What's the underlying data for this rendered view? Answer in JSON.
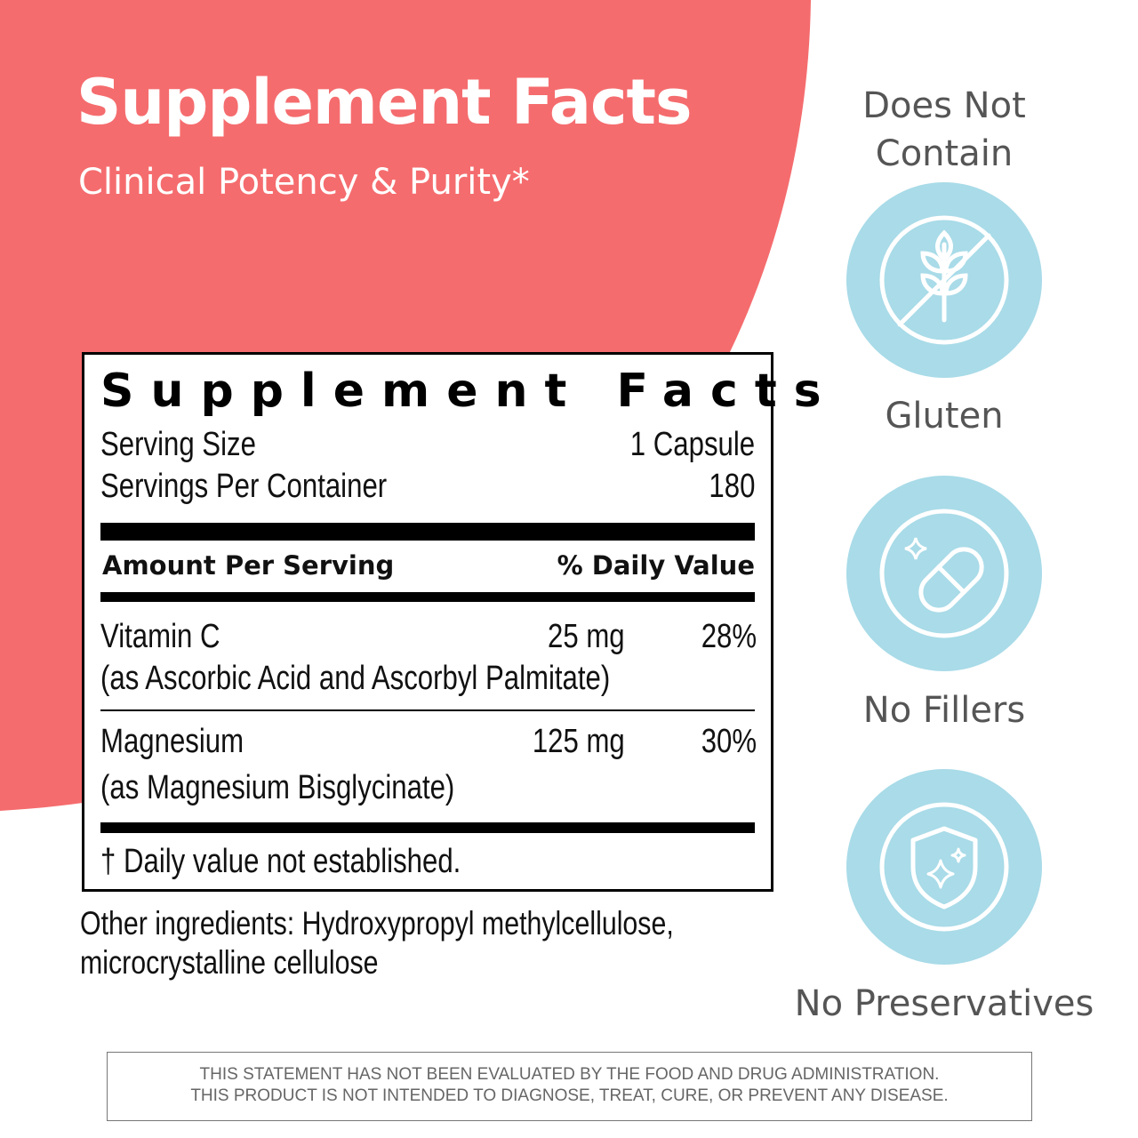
{
  "header": {
    "title": "Supplement Facts",
    "subtitle": "Clinical Potency & Purity*"
  },
  "facts": {
    "title": "Supplement Facts",
    "serving_size": {
      "label": "Serving Size",
      "value": "1 Capsule"
    },
    "servings": {
      "label": "Servings Per Container",
      "value": "180"
    },
    "columns": {
      "amount": "Amount Per Serving",
      "daily": "% Daily Value"
    },
    "rows": [
      {
        "name": "Vitamin C",
        "detail": "(as Ascorbic Acid and Ascorbyl Palmitate)",
        "amount": "25 mg",
        "daily": "28%"
      },
      {
        "name": "Magnesium",
        "detail": "(as Magnesium Bisglycinate)",
        "amount": "125 mg",
        "daily": "30%"
      }
    ],
    "footnote": "† Daily value not established."
  },
  "other_ingredients": [
    "Other ingredients: Hydroxypropyl methylcellulose,",
    "microcrystalline cellulose"
  ],
  "badges": {
    "heading": "Does Not Contain",
    "items": [
      "Gluten",
      "No Fillers",
      "No Preservatives"
    ]
  },
  "disclaimer": [
    "THIS STATEMENT HAS NOT BEEN EVALUATED BY THE FOOD AND DRUG ADMINISTRATION.",
    "THIS PRODUCT IS NOT INTENDED TO DIAGNOSE, TREAT, CURE, OR PREVENT ANY DISEASE."
  ]
}
